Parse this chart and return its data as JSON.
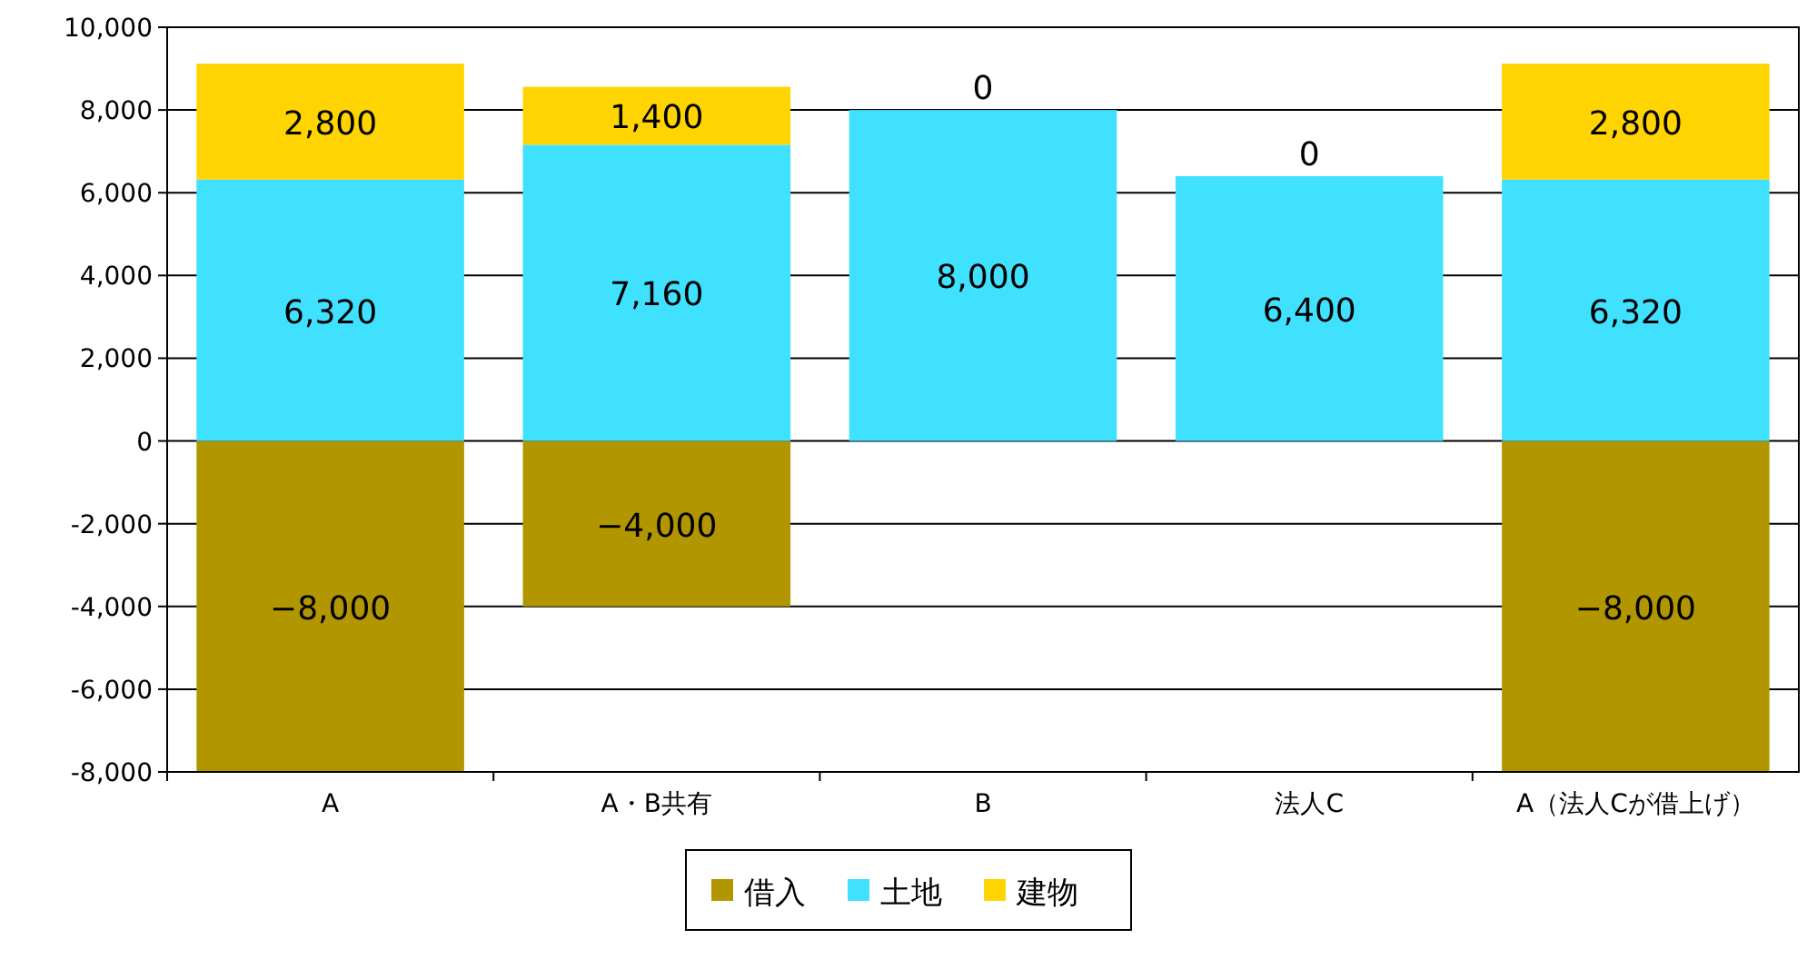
{
  "chart_data": {
    "type": "bar",
    "stacked": true,
    "categories": [
      "A",
      "A・B共有",
      "B",
      "法人C",
      "A（法人Cが借上げ）"
    ],
    "series": [
      {
        "name": "借入",
        "color": "#b29600",
        "values": [
          -8000,
          -4000,
          null,
          null,
          -8000
        ],
        "value_labels": [
          "−8,000",
          "−4,000",
          null,
          null,
          "−8,000"
        ]
      },
      {
        "name": "土地",
        "color": "#40e0ff",
        "values": [
          6320,
          7160,
          8000,
          6400,
          6320
        ],
        "value_labels": [
          "6,320",
          "7,160",
          "8,000",
          "6,400",
          "6,320"
        ]
      },
      {
        "name": "建物",
        "color": "#ffd400",
        "values": [
          2800,
          1400,
          0,
          0,
          2800
        ],
        "value_labels": [
          "2,800",
          "1,400",
          "0",
          "0",
          "2,800"
        ]
      }
    ],
    "ylim": [
      -8000,
      10000
    ],
    "yticks": [
      {
        "value": -8000,
        "label": "-8,000"
      },
      {
        "value": -6000,
        "label": "-6,000"
      },
      {
        "value": -4000,
        "label": "-4,000"
      },
      {
        "value": -2000,
        "label": "-2,000"
      },
      0,
      {
        "value": 2000,
        "label": "2,000"
      },
      {
        "value": 4000,
        "label": "4,000"
      },
      {
        "value": 6000,
        "label": "6,000"
      },
      {
        "value": 8000,
        "label": "8,000"
      },
      {
        "value": 10000,
        "label": "10,000"
      }
    ],
    "grid": "y",
    "legend": "bottom"
  }
}
